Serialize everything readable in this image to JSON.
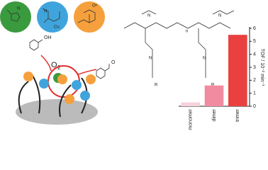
{
  "chart_data": {
    "type": "bar",
    "y_label": "TOF / 10⁻² min⁻¹",
    "categories": [
      "monomer",
      "dimer",
      "trimer"
    ],
    "values": [
      0.3,
      1.6,
      5.5
    ],
    "colors": [
      "#f6d2da",
      "#f08ba0",
      "#ea4040"
    ],
    "ylim": [
      0,
      6
    ],
    "yticks": [
      0,
      1,
      2,
      3,
      4,
      5,
      6
    ],
    "y_axis_side": "right"
  },
  "diagram": {
    "oh": "OH",
    "o": "O",
    "o2_sub": "2",
    "n": "n",
    "r": "R",
    "nitrogen": "N",
    "oxygen_radical": "O•",
    "cu": "Cu"
  }
}
